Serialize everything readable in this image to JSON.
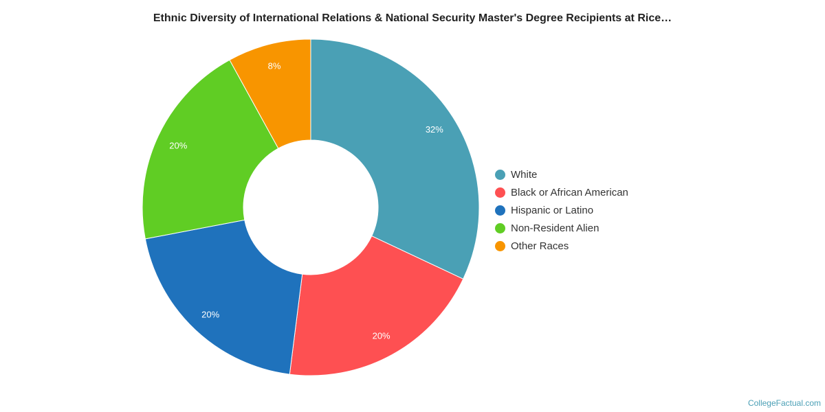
{
  "chart_data": {
    "type": "pie",
    "donut": true,
    "title": "Ethnic Diversity of International Relations & National Security Master's Degree Recipients at Rice…",
    "legend_position": "right",
    "slices": [
      {
        "name": "White",
        "value": 32,
        "label": "32%",
        "color": "#4aa0b5"
      },
      {
        "name": "Black or African American",
        "value": 20,
        "label": "20%",
        "color": "#fe5052"
      },
      {
        "name": "Hispanic or Latino",
        "value": 20,
        "label": "20%",
        "color": "#1f72bc"
      },
      {
        "name": "Non-Resident Alien",
        "value": 20,
        "label": "20%",
        "color": "#60cd24"
      },
      {
        "name": "Other Races",
        "value": 8,
        "label": "8%",
        "color": "#f89500"
      }
    ]
  },
  "credit": "CollegeFactual.com"
}
